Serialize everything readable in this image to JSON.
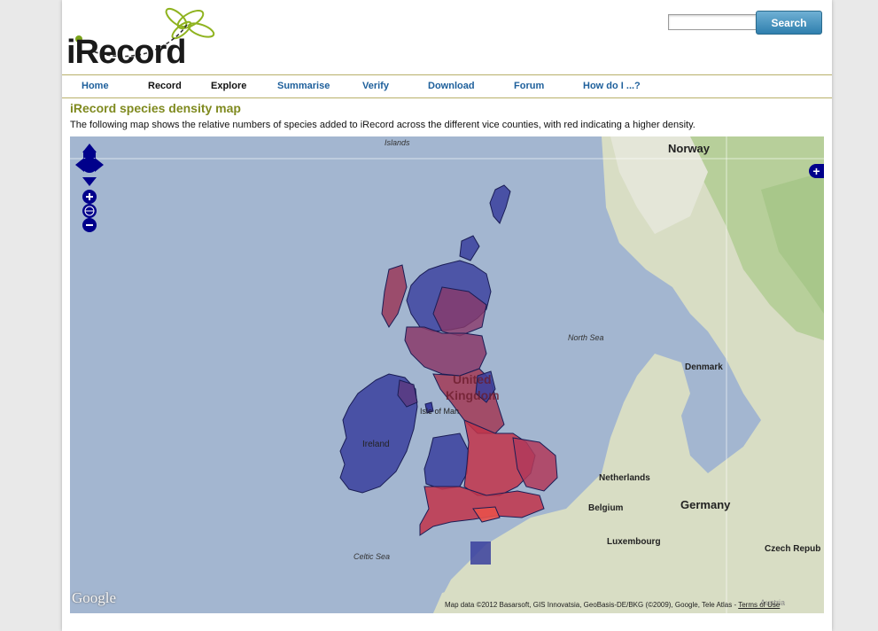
{
  "logo": {
    "text": "iRecord"
  },
  "header": {
    "search": {
      "placeholder": "",
      "button_label": "Search"
    }
  },
  "nav": {
    "items": [
      {
        "label": "Home"
      },
      {
        "label": "Record"
      },
      {
        "label": "Explore"
      },
      {
        "label": "Summarise"
      },
      {
        "label": "Verify"
      },
      {
        "label": "Download"
      },
      {
        "label": "Forum"
      },
      {
        "label": "How do I ...?"
      }
    ]
  },
  "content": {
    "title": "iRecord species density map",
    "intro": "The following map shows the relative numbers of species added to iRecord across the different vice counties, with red indicating a higher density."
  },
  "map": {
    "labels": {
      "islands": "Islands",
      "norway": "Norway",
      "north_sea": "North Sea",
      "denmark": "Denmark",
      "united": "United",
      "kingdom": "Kingdom",
      "isle_of_man": "Isle of Man",
      "ireland": "Ireland",
      "netherlands": "Netherlands",
      "belgium": "Belgium",
      "germany": "Germany",
      "luxembourg": "Luxembourg",
      "celtic_sea": "Celtic Sea",
      "czech": "Czech Repub",
      "austria": "Austria"
    },
    "google": "Google",
    "attribution": "Map data ©2012 Basarsoft, GIS Innovatsia, GeoBasis-DE/BKG (©2009), Google, Tele Atlas -",
    "terms": "Terms of Use",
    "layer_switch": "+",
    "colors": {
      "sea": "#a3b6d0",
      "land": "#d8ddc4",
      "forest": "#b7cf9a",
      "low_density": "#3a3f9e",
      "high_density": "#c2344a",
      "control": "#00008b"
    }
  }
}
